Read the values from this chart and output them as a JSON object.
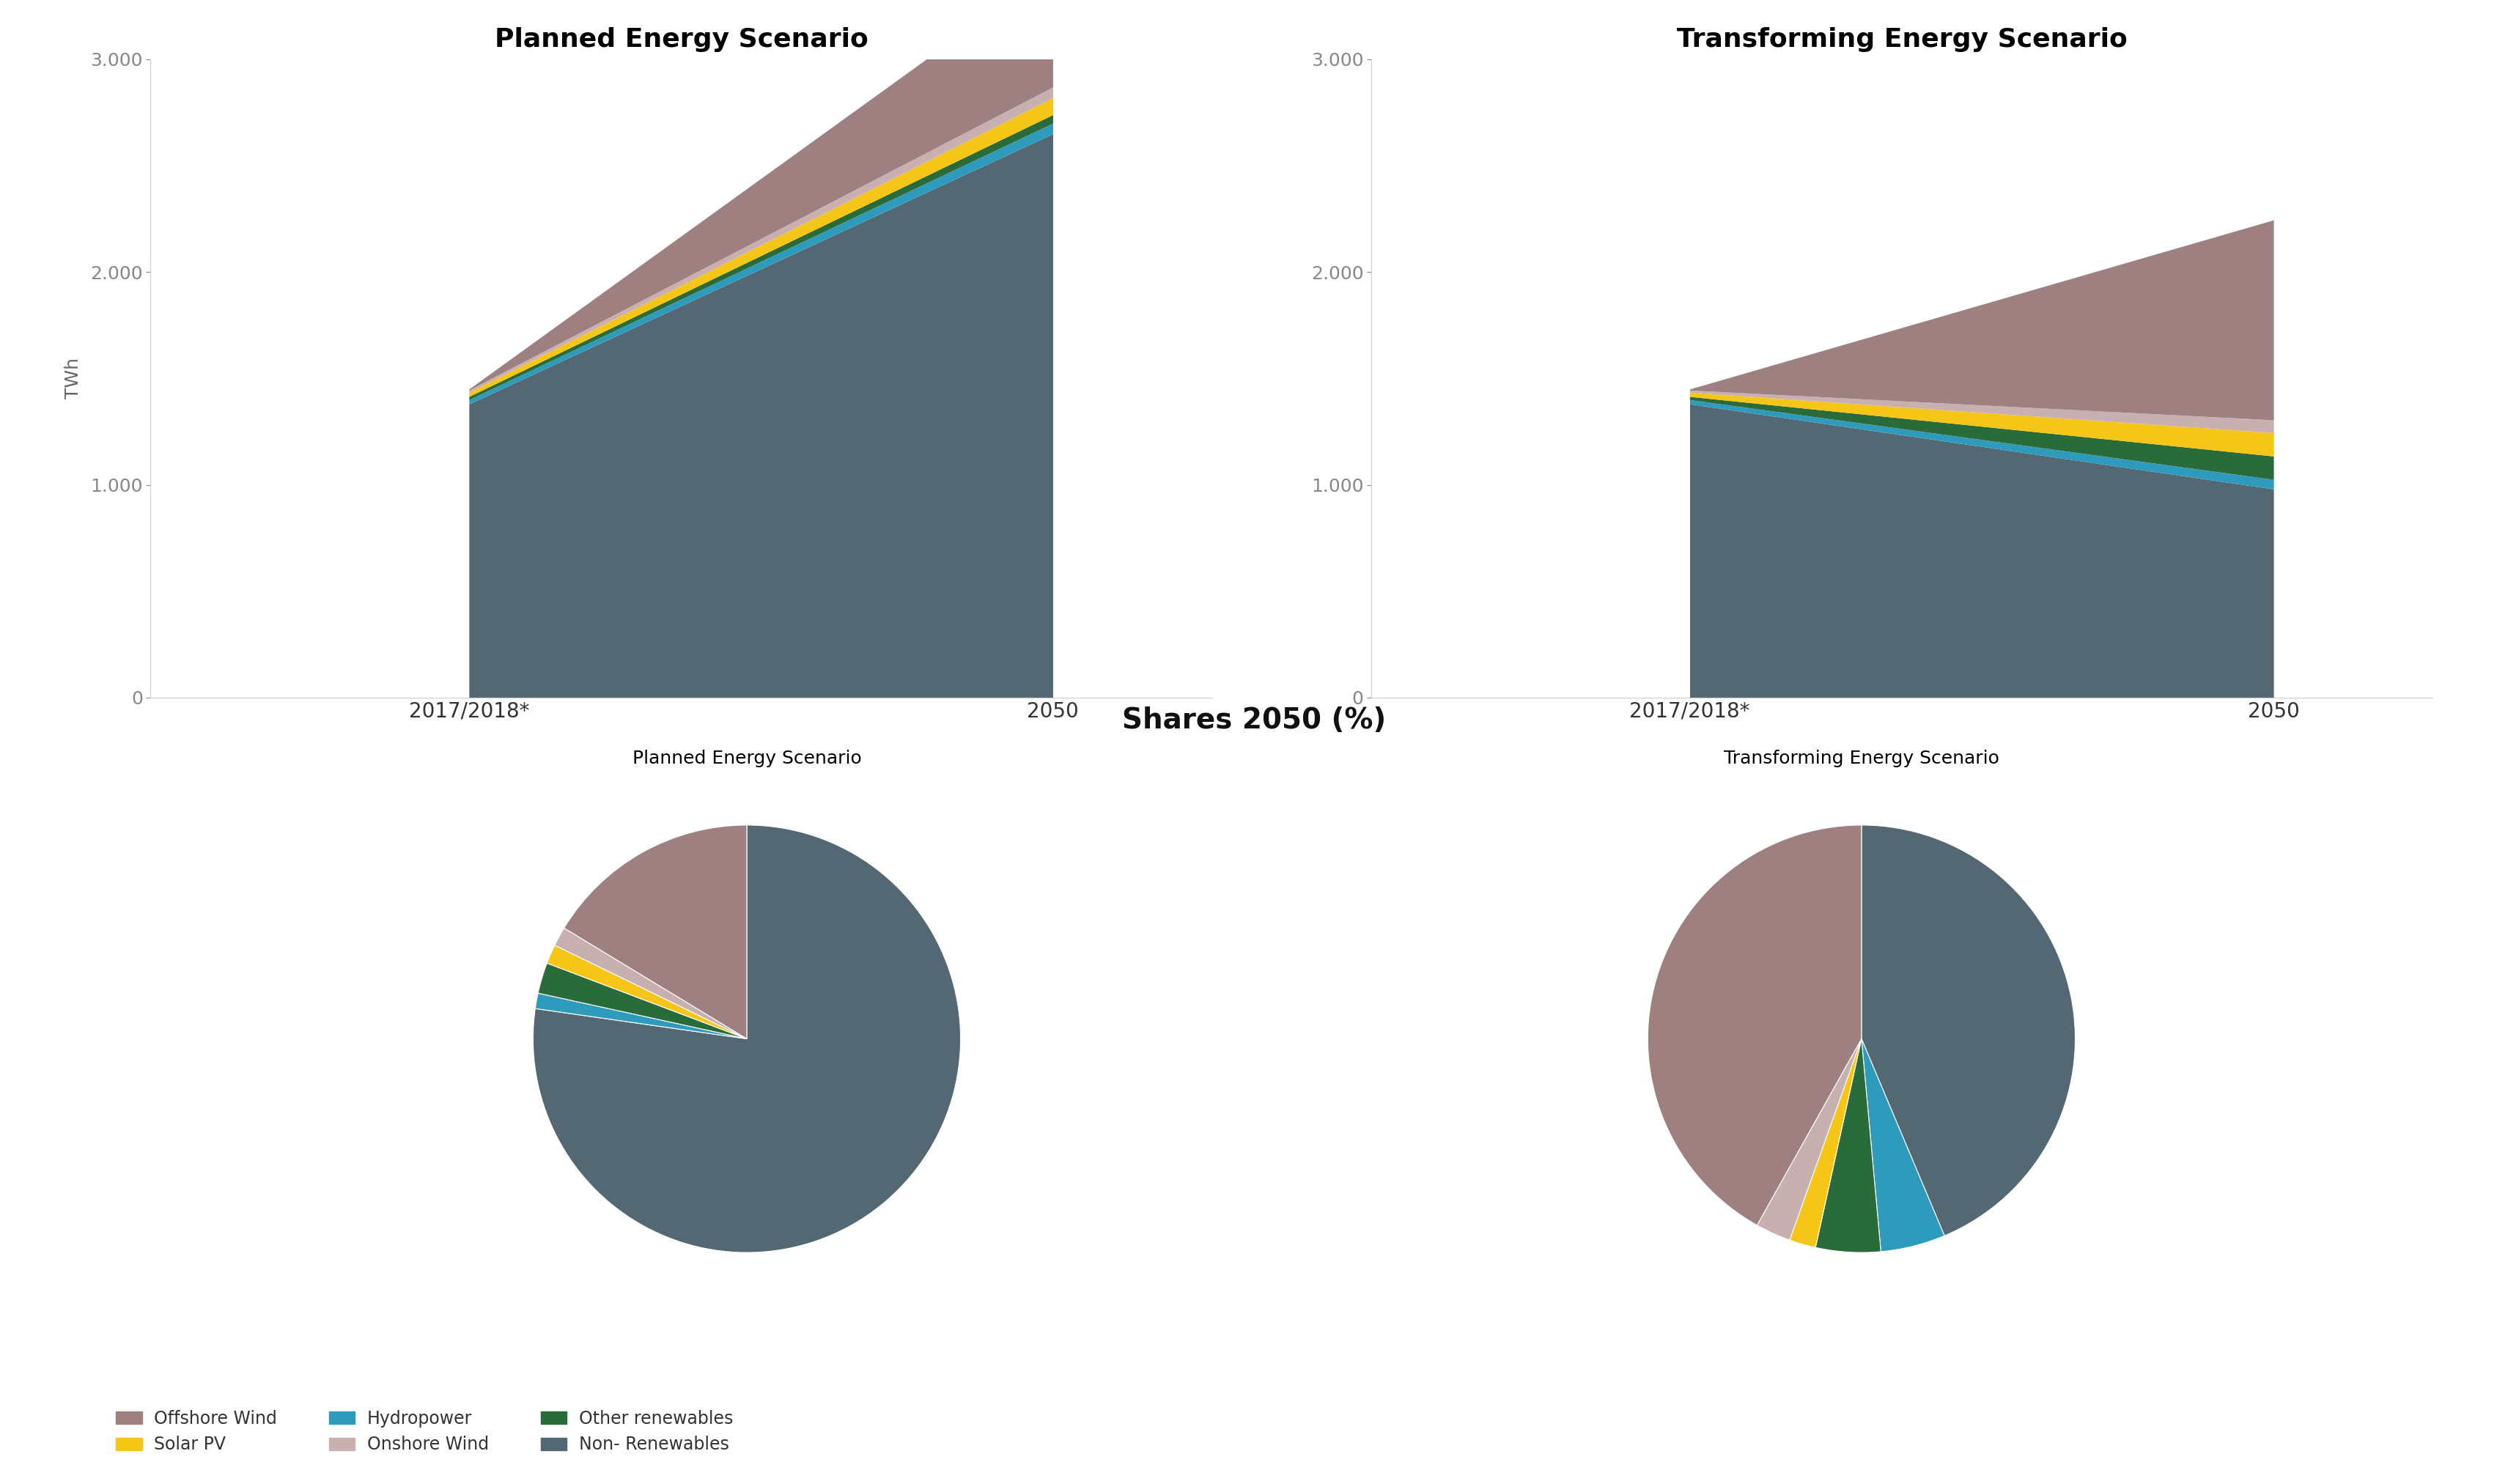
{
  "title_planned": "Planned Energy Scenario",
  "title_transforming": "Transforming Energy Scenario",
  "title_shares": "Shares 2050 (%)",
  "pie_title_planned": "Planned Energy Scenario",
  "pie_title_transforming": "Transforming Energy Scenario",
  "ylabel": "TWh",
  "xticks": [
    "2017/2018*",
    "2050"
  ],
  "yticks": [
    0,
    1000,
    2000,
    3000
  ],
  "ytick_labels": [
    "0",
    "1.000",
    "2.000",
    "3.000"
  ],
  "colors": {
    "non_renewables": "#536872",
    "hydropower": "#2e9bbd",
    "other_renewables": "#2a6b3c",
    "solar_pv": "#f5c518",
    "onshore_wind": "#c8b0b0",
    "offshore_wind": "#9e8080"
  },
  "legend_labels": [
    "Offshore Wind",
    "Solar PV",
    "Hydropower",
    "Onshore Wind",
    "Other renewables",
    "Non- Renewables"
  ],
  "legend_colors": [
    "#9e8080",
    "#f5c518",
    "#2e9bbd",
    "#c8b0b0",
    "#2a6b3c",
    "#536872"
  ],
  "planned_2017": {
    "non_renewables": 1380,
    "hydropower": 20,
    "other_renewables": 15,
    "solar_pv": 20,
    "onshore_wind": 10,
    "offshore_wind": 5
  },
  "planned_2050": {
    "non_renewables": 2650,
    "hydropower": 50,
    "other_renewables": 40,
    "solar_pv": 80,
    "onshore_wind": 50,
    "offshore_wind": 560
  },
  "transforming_2017": {
    "non_renewables": 1380,
    "hydropower": 20,
    "other_renewables": 15,
    "solar_pv": 20,
    "onshore_wind": 10,
    "offshore_wind": 5
  },
  "transforming_2050": {
    "non_renewables": 980,
    "hydropower": 45,
    "other_renewables": 110,
    "solar_pv": 110,
    "onshore_wind": 60,
    "offshore_wind": 940
  },
  "planned_pie_2050": [
    2650,
    40,
    80,
    50,
    50,
    560
  ],
  "transforming_pie_2050": [
    980,
    110,
    110,
    45,
    60,
    940
  ],
  "background_color": "#ffffff"
}
